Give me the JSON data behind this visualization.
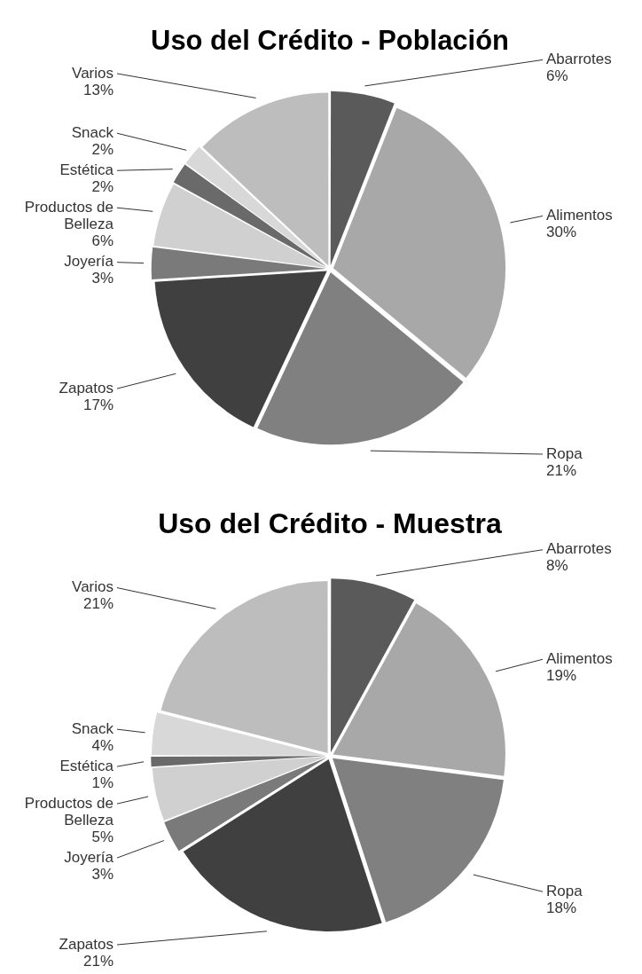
{
  "chart_data": [
    {
      "type": "pie",
      "title": "Uso del Crédito - Población",
      "categories": [
        "Abarrotes",
        "Alimentos",
        "Ropa",
        "Zapatos",
        "Joyería",
        "Productos de Belleza",
        "Estética",
        "Snack",
        "Varios"
      ],
      "values": [
        6,
        30,
        21,
        17,
        3,
        6,
        2,
        2,
        13
      ],
      "value_labels": [
        "6%",
        "30%",
        "21%",
        "17%",
        "3%",
        "6%",
        "2%",
        "2%",
        "13%"
      ],
      "colors": [
        "#5a5a5a",
        "#a8a8a8",
        "#808080",
        "#404040",
        "#7a7a7a",
        "#d0d0d0",
        "#6a6a6a",
        "#d8d8d8",
        "#bdbdbd"
      ]
    },
    {
      "type": "pie",
      "title": "Uso del Crédito - Muestra",
      "categories": [
        "Abarrotes",
        "Alimentos",
        "Ropa",
        "Zapatos",
        "Joyería",
        "Productos de Belleza",
        "Estética",
        "Snack",
        "Varios"
      ],
      "values": [
        8,
        19,
        18,
        21,
        3,
        5,
        1,
        4,
        21
      ],
      "value_labels": [
        "8%",
        "19%",
        "18%",
        "21%",
        "3%",
        "5%",
        "1%",
        "4%",
        "21%"
      ],
      "colors": [
        "#5a5a5a",
        "#a8a8a8",
        "#808080",
        "#404040",
        "#7a7a7a",
        "#d0d0d0",
        "#6a6a6a",
        "#d8d8d8",
        "#bdbdbd"
      ]
    }
  ]
}
